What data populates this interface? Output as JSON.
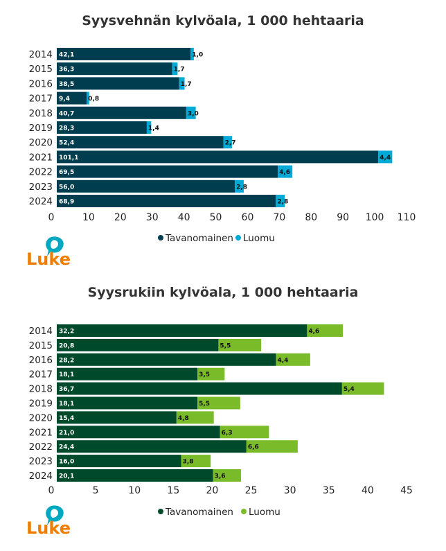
{
  "logo_text": "Luke",
  "colors": {
    "wheat_conventional": "#003e4f",
    "wheat_organic": "#00a9d6",
    "rye_conventional": "#004a2c",
    "rye_organic": "#7abb2a",
    "logo_orange": "#ee7d00",
    "logo_teal": "#00a9c1"
  },
  "chart_data": [
    {
      "type": "bar",
      "orientation": "horizontal",
      "stacked": true,
      "title": "Syysvehnän kylvöala, 1 000 hehtaaria",
      "categories": [
        "2014",
        "2015",
        "2016",
        "2017",
        "2018",
        "2019",
        "2020",
        "2021",
        "2022",
        "2023",
        "2024"
      ],
      "series": [
        {
          "name": "Tavanomainen",
          "values": [
            42.1,
            36.3,
            38.5,
            9.4,
            40.7,
            28.3,
            52.4,
            101.1,
            69.5,
            56.0,
            68.9
          ],
          "labels": [
            "42,1",
            "36,3",
            "38,5",
            "9,4",
            "40,7",
            "28,3",
            "52,4",
            "101,1",
            "69,5",
            "56,0",
            "68,9"
          ]
        },
        {
          "name": "Luomu",
          "values": [
            1.0,
            1.7,
            1.7,
            0.8,
            3.0,
            1.4,
            2.7,
            4.4,
            4.6,
            2.8,
            2.8
          ],
          "labels": [
            "1,0",
            "1,7",
            "1,7",
            "0,8",
            "3,0",
            "1,4",
            "2,7",
            "4,4",
            "4,6",
            "2,8",
            "2,8"
          ]
        }
      ],
      "xlim": [
        0,
        110
      ],
      "xticks": [
        "0",
        "10",
        "20",
        "30",
        "40",
        "50",
        "60",
        "70",
        "80",
        "90",
        "100",
        "110"
      ],
      "legend": [
        "Tavanomainen",
        "Luomu"
      ]
    },
    {
      "type": "bar",
      "orientation": "horizontal",
      "stacked": true,
      "title": "Syysrukiin kylvöala, 1 000 hehtaaria",
      "categories": [
        "2014",
        "2015",
        "2016",
        "2017",
        "2018",
        "2019",
        "2020",
        "2021",
        "2022",
        "2023",
        "2024"
      ],
      "series": [
        {
          "name": "Tavanomainen",
          "values": [
            32.2,
            20.8,
            28.2,
            18.1,
            36.7,
            18.1,
            15.4,
            21.0,
            24.4,
            16.0,
            20.1
          ],
          "labels": [
            "32,2",
            "20,8",
            "28,2",
            "18,1",
            "36,7",
            "18,1",
            "15,4",
            "21,0",
            "24,4",
            "16,0",
            "20,1"
          ]
        },
        {
          "name": "Luomu",
          "values": [
            4.6,
            5.5,
            4.4,
            3.5,
            5.4,
            5.5,
            4.8,
            6.3,
            6.6,
            3.8,
            3.6
          ],
          "labels": [
            "4,6",
            "5,5",
            "4,4",
            "3,5",
            "5,4",
            "5,5",
            "4,8",
            "6,3",
            "6,6",
            "3,8",
            "3,6"
          ]
        }
      ],
      "xlim": [
        0,
        45
      ],
      "xticks": [
        "0",
        "5",
        "10",
        "15",
        "20",
        "25",
        "30",
        "35",
        "40",
        "45"
      ],
      "legend": [
        "Tavanomainen",
        "Luomu"
      ]
    }
  ]
}
